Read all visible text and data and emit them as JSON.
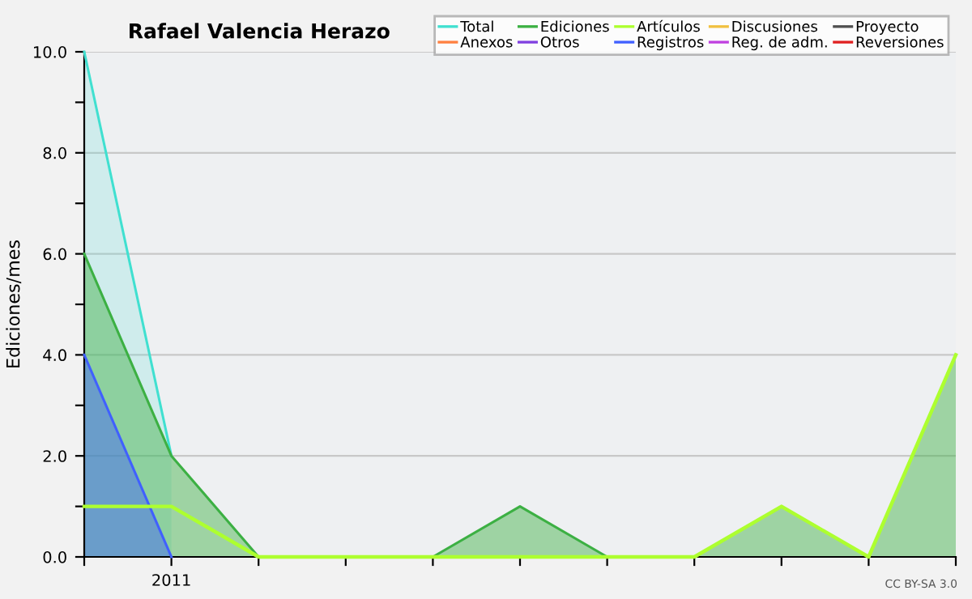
{
  "chart_data": {
    "type": "line",
    "title": "Rafael Valencia Herazo",
    "ylabel": "Ediciones/mes",
    "categories": [
      null,
      "2011",
      null,
      null,
      null,
      null,
      null,
      null,
      null,
      null,
      null
    ],
    "series": [
      {
        "name": "Total",
        "type": "area",
        "color": "#40e0d0",
        "values": [
          10,
          2,
          null,
          null,
          null,
          null,
          null,
          null,
          null,
          null,
          null
        ]
      },
      {
        "name": "Ediciones",
        "type": "area",
        "color": "#3cb043",
        "values": [
          6,
          2,
          0,
          0,
          0,
          1,
          0,
          0,
          1,
          0,
          4
        ]
      },
      {
        "name": "Artículos",
        "color": "#adff2f",
        "values": [
          1,
          1,
          0,
          0,
          0,
          0,
          0,
          0,
          1,
          0,
          4
        ]
      },
      {
        "name": "Discusiones",
        "type": "line",
        "color": "#f0c040",
        "values": [
          null,
          null,
          null,
          null,
          null,
          null,
          null,
          null,
          null,
          null,
          null
        ]
      },
      {
        "name": "Proyecto",
        "type": "line",
        "color": "#505050",
        "values": [
          null,
          null,
          null,
          null,
          null,
          null,
          null,
          null,
          null,
          null,
          null
        ]
      },
      {
        "name": "Anexos",
        "type": "line",
        "color": "#ff8040",
        "values": [
          null,
          null,
          null,
          null,
          null,
          null,
          null,
          null,
          null,
          null,
          null
        ]
      },
      {
        "name": "Otros",
        "type": "line",
        "color": "#8040e0",
        "values": [
          null,
          null,
          null,
          null,
          null,
          null,
          null,
          null,
          null,
          null,
          null
        ]
      },
      {
        "name": "Registros",
        "type": "area",
        "color": "#4060ff",
        "values": [
          4,
          0,
          null,
          null,
          null,
          null,
          null,
          null,
          null,
          null,
          null
        ]
      },
      {
        "name": "Reg. de adm.",
        "type": "line",
        "color": "#c040e0",
        "values": [
          null,
          null,
          null,
          null,
          null,
          null,
          null,
          null,
          null,
          null,
          null
        ]
      },
      {
        "name": "Reversiones",
        "type": "line",
        "color": "#e02020",
        "values": [
          null,
          null,
          null,
          null,
          null,
          null,
          null,
          null,
          null,
          null,
          null
        ]
      }
    ],
    "ylim": [
      0,
      10
    ],
    "yticks": [
      {
        "value": 0,
        "label": "0.0"
      },
      {
        "value": 1,
        "label": null
      },
      {
        "value": 2,
        "label": "2.0"
      },
      {
        "value": 3,
        "label": null
      },
      {
        "value": 4,
        "label": "4.0"
      },
      {
        "value": 5,
        "label": null
      },
      {
        "value": 6,
        "label": "6.0"
      },
      {
        "value": 7,
        "label": null
      },
      {
        "value": 8,
        "label": "8.0"
      },
      {
        "value": 9,
        "label": null
      },
      {
        "value": 10,
        "label": "10.0"
      }
    ],
    "grid": "y",
    "legend": "top right",
    "marker": "none",
    "line_style": "solid",
    "annotations": [
      "CC BY-SA 3.0"
    ]
  }
}
